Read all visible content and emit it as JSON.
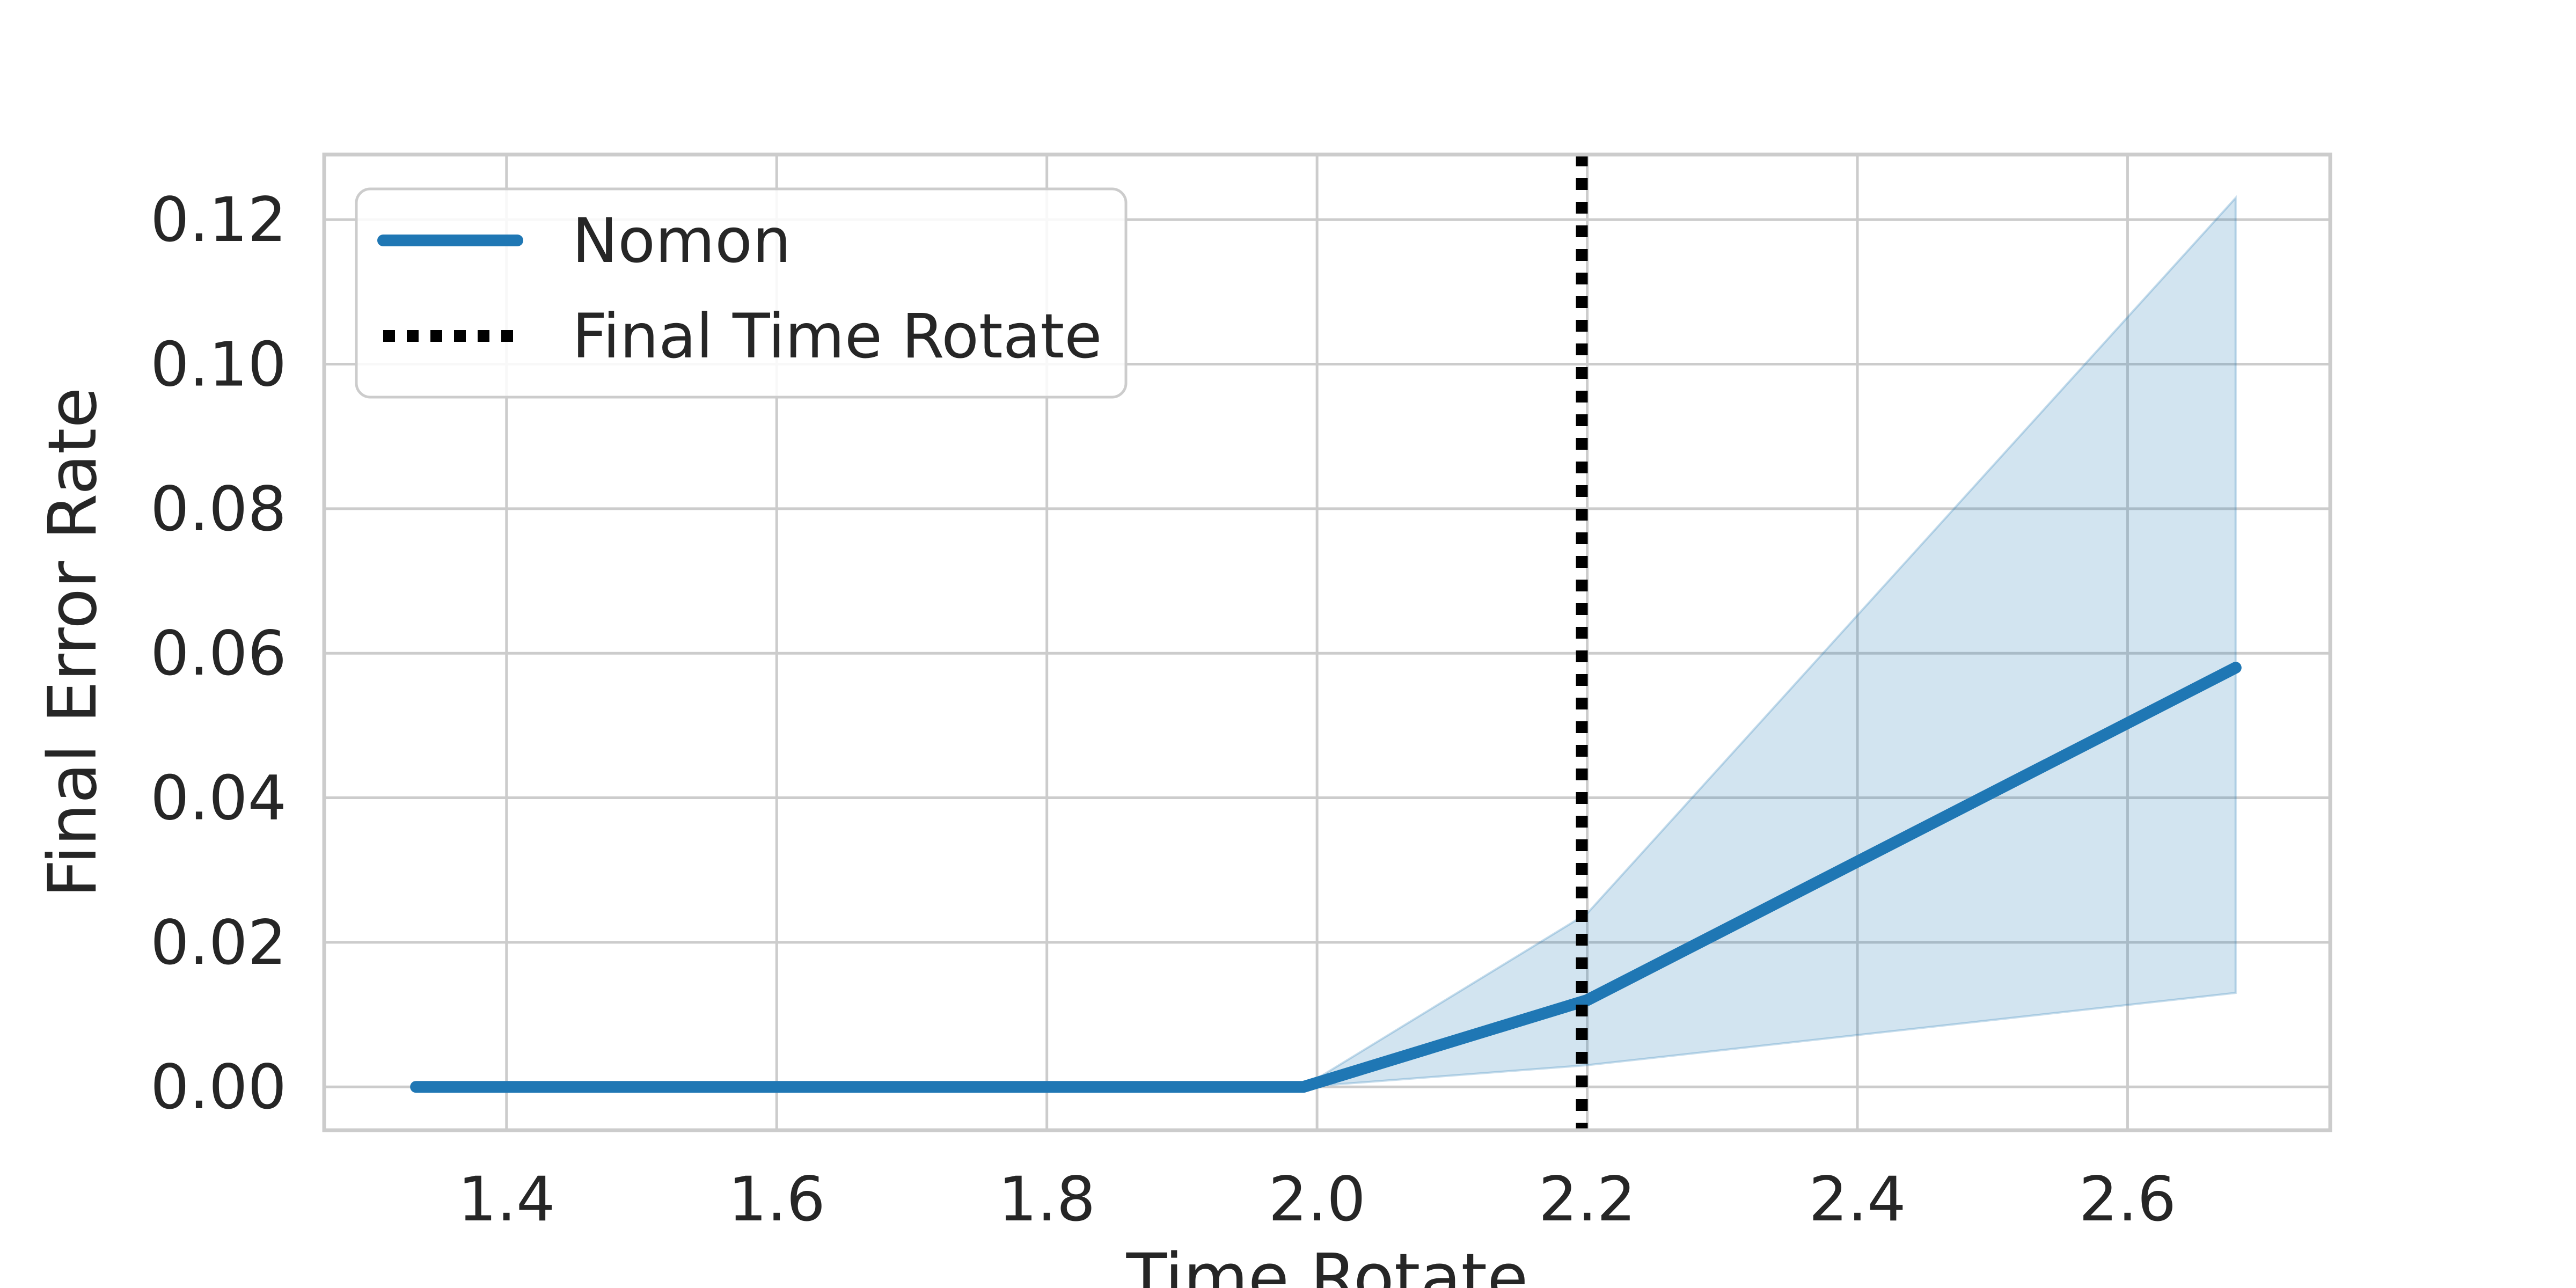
{
  "chart_data": {
    "type": "line",
    "title": "",
    "xlabel": "Time Rotate",
    "ylabel": "Final Error Rate",
    "xlim": [
      1.265,
      2.75
    ],
    "ylim": [
      -0.006,
      0.129
    ],
    "xticks": [
      1.4,
      1.6,
      1.8,
      2.0,
      2.2,
      2.4,
      2.6
    ],
    "xtick_labels": [
      "1.4",
      "1.6",
      "1.8",
      "2.0",
      "2.2",
      "2.4",
      "2.6"
    ],
    "yticks": [
      0.0,
      0.02,
      0.04,
      0.06,
      0.08,
      0.1,
      0.12
    ],
    "ytick_labels": [
      "0.00",
      "0.02",
      "0.04",
      "0.06",
      "0.08",
      "0.10",
      "0.12"
    ],
    "grid": true,
    "legend_position": "top-left",
    "series": [
      {
        "name": "Nomon",
        "color": "#1f77b4",
        "x": [
          1.333,
          1.99,
          2.2,
          2.68
        ],
        "y": [
          0.0,
          0.0,
          0.012,
          0.058
        ],
        "ci_lower": [
          0.0,
          0.0,
          0.003,
          0.013
        ],
        "ci_upper": [
          0.0,
          0.0,
          0.024,
          0.123
        ]
      }
    ],
    "vlines": [
      {
        "name": "Final Time Rotate",
        "x": 2.196,
        "color": "#000000",
        "style": "dotted"
      }
    ]
  }
}
